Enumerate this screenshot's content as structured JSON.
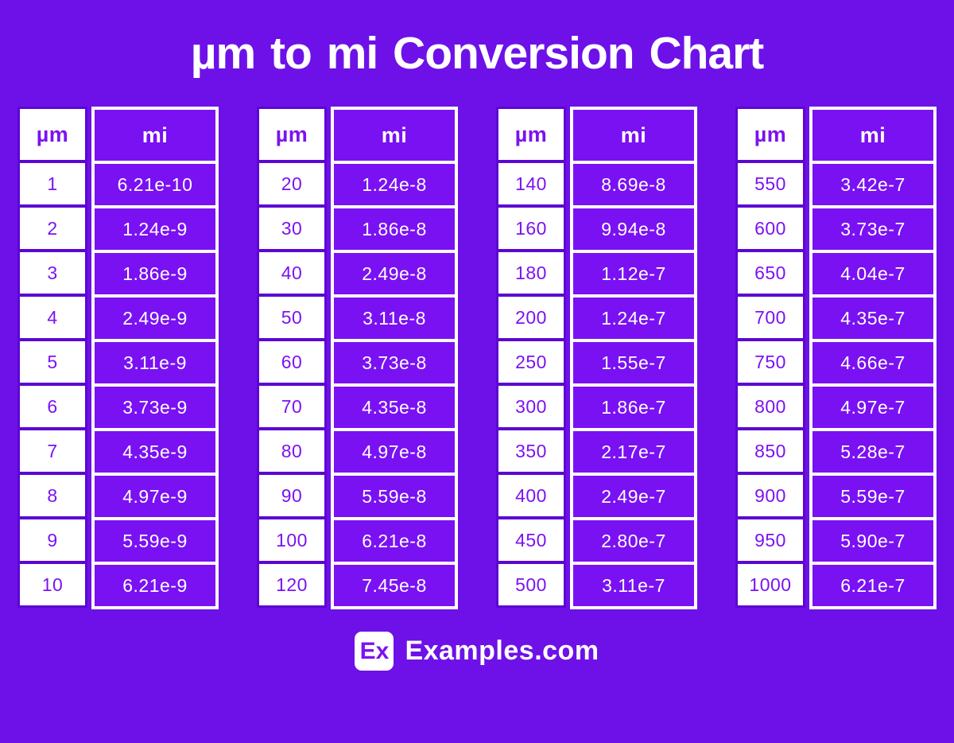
{
  "title": "µm to mi Conversion Chart",
  "tables": [
    {
      "headers": {
        "um": "µm",
        "mi": "mi"
      },
      "rows": [
        {
          "um": "1",
          "mi": "6.21e-10"
        },
        {
          "um": "2",
          "mi": "1.24e-9"
        },
        {
          "um": "3",
          "mi": "1.86e-9"
        },
        {
          "um": "4",
          "mi": "2.49e-9"
        },
        {
          "um": "5",
          "mi": "3.11e-9"
        },
        {
          "um": "6",
          "mi": "3.73e-9"
        },
        {
          "um": "7",
          "mi": "4.35e-9"
        },
        {
          "um": "8",
          "mi": "4.97e-9"
        },
        {
          "um": "9",
          "mi": "5.59e-9"
        },
        {
          "um": "10",
          "mi": "6.21e-9"
        }
      ]
    },
    {
      "headers": {
        "um": "µm",
        "mi": "mi"
      },
      "rows": [
        {
          "um": "20",
          "mi": "1.24e-8"
        },
        {
          "um": "30",
          "mi": "1.86e-8"
        },
        {
          "um": "40",
          "mi": "2.49e-8"
        },
        {
          "um": "50",
          "mi": "3.11e-8"
        },
        {
          "um": "60",
          "mi": "3.73e-8"
        },
        {
          "um": "70",
          "mi": "4.35e-8"
        },
        {
          "um": "80",
          "mi": "4.97e-8"
        },
        {
          "um": "90",
          "mi": "5.59e-8"
        },
        {
          "um": "100",
          "mi": "6.21e-8"
        },
        {
          "um": "120",
          "mi": "7.45e-8"
        }
      ]
    },
    {
      "headers": {
        "um": "µm",
        "mi": "mi"
      },
      "rows": [
        {
          "um": "140",
          "mi": "8.69e-8"
        },
        {
          "um": "160",
          "mi": "9.94e-8"
        },
        {
          "um": "180",
          "mi": "1.12e-7"
        },
        {
          "um": "200",
          "mi": "1.24e-7"
        },
        {
          "um": "250",
          "mi": "1.55e-7"
        },
        {
          "um": "300",
          "mi": "1.86e-7"
        },
        {
          "um": "350",
          "mi": "2.17e-7"
        },
        {
          "um": "400",
          "mi": "2.49e-7"
        },
        {
          "um": "450",
          "mi": "2.80e-7"
        },
        {
          "um": "500",
          "mi": "3.11e-7"
        }
      ]
    },
    {
      "headers": {
        "um": "µm",
        "mi": "mi"
      },
      "rows": [
        {
          "um": "550",
          "mi": "3.42e-7"
        },
        {
          "um": "600",
          "mi": "3.73e-7"
        },
        {
          "um": "650",
          "mi": "4.04e-7"
        },
        {
          "um": "700",
          "mi": "4.35e-7"
        },
        {
          "um": "750",
          "mi": "4.66e-7"
        },
        {
          "um": "800",
          "mi": "4.97e-7"
        },
        {
          "um": "850",
          "mi": "5.28e-7"
        },
        {
          "um": "900",
          "mi": "5.59e-7"
        },
        {
          "um": "950",
          "mi": "5.90e-7"
        },
        {
          "um": "1000",
          "mi": "6.21e-7"
        }
      ]
    }
  ],
  "footer": {
    "logo_text": "Ex",
    "site_name": "Examples.com"
  },
  "colors": {
    "background": "#6d11e8",
    "cell_purple": "#7a11f3",
    "grid_purple": "#5c07d2",
    "accent_text": "#7c12f1",
    "white": "#ffffff"
  },
  "chart_data": {
    "type": "table",
    "title": "µm to mi Conversion Chart",
    "columns": [
      "µm",
      "mi"
    ],
    "groups": [
      {
        "rows": [
          [
            1,
            "6.21e-10"
          ],
          [
            2,
            "1.24e-9"
          ],
          [
            3,
            "1.86e-9"
          ],
          [
            4,
            "2.49e-9"
          ],
          [
            5,
            "3.11e-9"
          ],
          [
            6,
            "3.73e-9"
          ],
          [
            7,
            "4.35e-9"
          ],
          [
            8,
            "4.97e-9"
          ],
          [
            9,
            "5.59e-9"
          ],
          [
            10,
            "6.21e-9"
          ]
        ]
      },
      {
        "rows": [
          [
            20,
            "1.24e-8"
          ],
          [
            30,
            "1.86e-8"
          ],
          [
            40,
            "2.49e-8"
          ],
          [
            50,
            "3.11e-8"
          ],
          [
            60,
            "3.73e-8"
          ],
          [
            70,
            "4.35e-8"
          ],
          [
            80,
            "4.97e-8"
          ],
          [
            90,
            "5.59e-8"
          ],
          [
            100,
            "6.21e-8"
          ],
          [
            120,
            "7.45e-8"
          ]
        ]
      },
      {
        "rows": [
          [
            140,
            "8.69e-8"
          ],
          [
            160,
            "9.94e-8"
          ],
          [
            180,
            "1.12e-7"
          ],
          [
            200,
            "1.24e-7"
          ],
          [
            250,
            "1.55e-7"
          ],
          [
            300,
            "1.86e-7"
          ],
          [
            350,
            "2.17e-7"
          ],
          [
            400,
            "2.49e-7"
          ],
          [
            450,
            "2.80e-7"
          ],
          [
            500,
            "3.11e-7"
          ]
        ]
      },
      {
        "rows": [
          [
            550,
            "3.42e-7"
          ],
          [
            600,
            "3.73e-7"
          ],
          [
            650,
            "4.04e-7"
          ],
          [
            700,
            "4.35e-7"
          ],
          [
            750,
            "4.66e-7"
          ],
          [
            800,
            "4.97e-7"
          ],
          [
            850,
            "5.28e-7"
          ],
          [
            900,
            "5.59e-7"
          ],
          [
            950,
            "5.90e-7"
          ],
          [
            1000,
            "6.21e-7"
          ]
        ]
      }
    ]
  }
}
